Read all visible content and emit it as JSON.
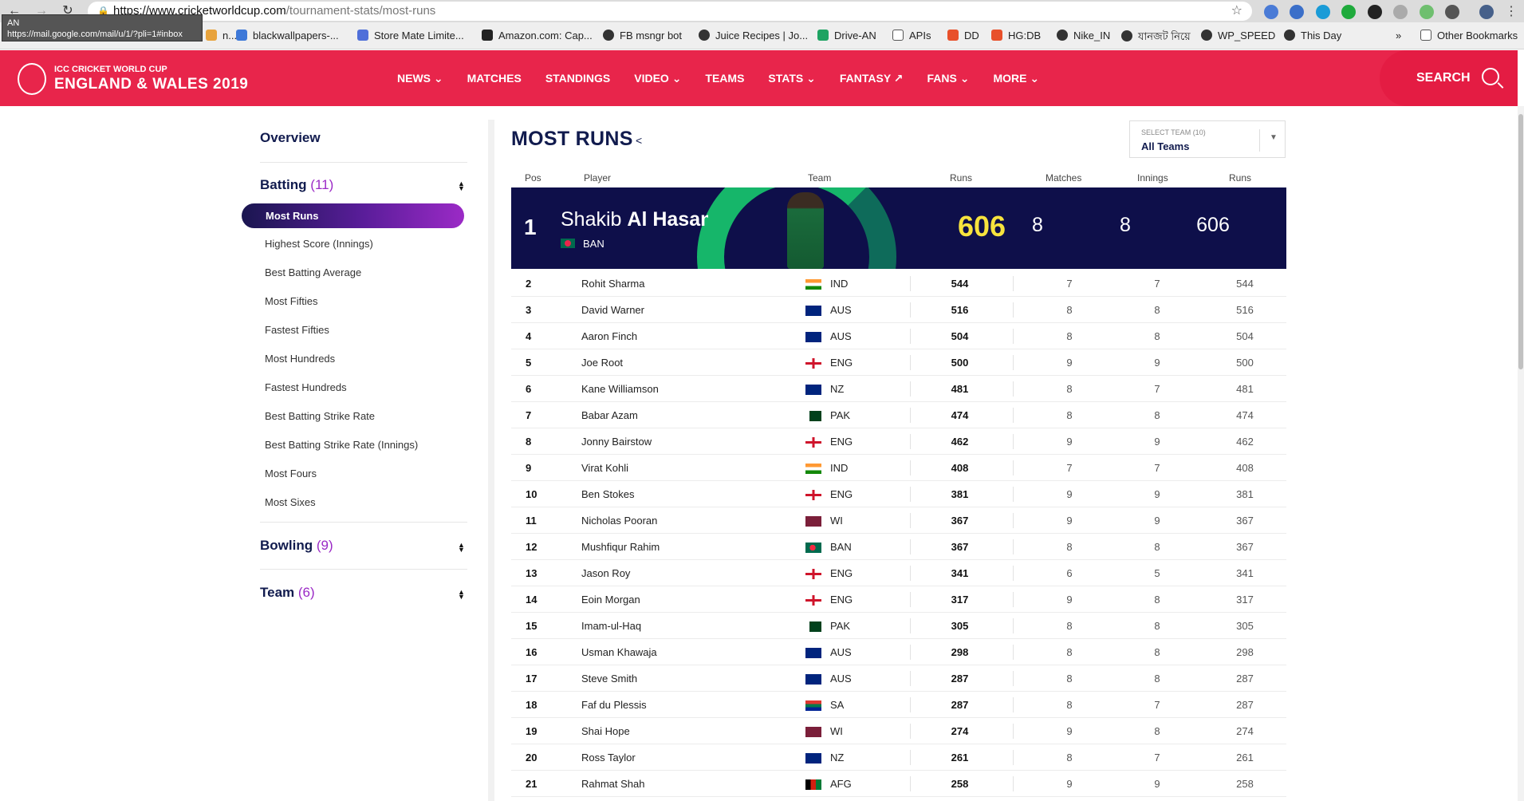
{
  "browser": {
    "url_host": "https://www.cricketworldcup.com",
    "url_path": "/tournament-stats/most-runs",
    "tooltip_line1": "AN",
    "tooltip_line2": "https://mail.google.com/mail/u/1/?pli=1#inbox",
    "bookmarks": [
      "n...",
      "blackwallpapers-...",
      "Store Mate Limite...",
      "Amazon.com: Cap...",
      "FB msngr bot",
      "Juice Recipes | Jo...",
      "Drive-AN",
      "APIs",
      "DD",
      "HG:DB",
      "Nike_IN",
      "যানজট নিয়ে",
      "WP_SPEED",
      "This Day"
    ],
    "more": "»",
    "other_bookmarks": "Other Bookmarks"
  },
  "header": {
    "logo_line1": "ICC CRICKET WORLD CUP",
    "logo_line2": "ENGLAND & WALES 2019",
    "nav": [
      "NEWS ⌄",
      "MATCHES",
      "STANDINGS",
      "VIDEO ⌄",
      "TEAMS",
      "STATS ⌄",
      "FANTASY ↗",
      "FANS ⌄",
      "MORE ⌄"
    ],
    "search_label": "SEARCH"
  },
  "sidebar": {
    "overview": "Overview",
    "batting_label": "Batting",
    "batting_count": "(11)",
    "batting_items": [
      "Most Runs",
      "Highest Score (Innings)",
      "Best Batting Average",
      "Most Fifties",
      "Fastest Fifties",
      "Most Hundreds",
      "Fastest Hundreds",
      "Best Batting Strike Rate",
      "Best Batting Strike Rate (Innings)",
      "Most Fours",
      "Most Sixes"
    ],
    "bowling_label": "Bowling",
    "bowling_count": "(9)",
    "team_label": "Team",
    "team_count": "(6)"
  },
  "main": {
    "title": "MOST RUNS",
    "select_label": "SELECT TEAM (10)",
    "select_value": "All Teams",
    "columns": [
      "Pos",
      "Player",
      "Team",
      "Runs",
      "Matches",
      "Innings",
      "Runs"
    ],
    "leader": {
      "pos": "1",
      "first": "Shakib ",
      "last": "Al Hasan",
      "team": "BAN",
      "runs": "606",
      "matches": "8",
      "innings": "8",
      "runs2": "606"
    },
    "rows": [
      {
        "pos": "2",
        "player": "Rohit Sharma",
        "team": "IND",
        "runs": "544",
        "m": "7",
        "i": "7",
        "r": "544",
        "flag": "ind"
      },
      {
        "pos": "3",
        "player": "David Warner",
        "team": "AUS",
        "runs": "516",
        "m": "8",
        "i": "8",
        "r": "516",
        "flag": "aus"
      },
      {
        "pos": "4",
        "player": "Aaron Finch",
        "team": "AUS",
        "runs": "504",
        "m": "8",
        "i": "8",
        "r": "504",
        "flag": "aus"
      },
      {
        "pos": "5",
        "player": "Joe Root",
        "team": "ENG",
        "runs": "500",
        "m": "9",
        "i": "9",
        "r": "500",
        "flag": "eng"
      },
      {
        "pos": "6",
        "player": "Kane Williamson",
        "team": "NZ",
        "runs": "481",
        "m": "8",
        "i": "7",
        "r": "481",
        "flag": "nz"
      },
      {
        "pos": "7",
        "player": "Babar Azam",
        "team": "PAK",
        "runs": "474",
        "m": "8",
        "i": "8",
        "r": "474",
        "flag": "pak"
      },
      {
        "pos": "8",
        "player": "Jonny Bairstow",
        "team": "ENG",
        "runs": "462",
        "m": "9",
        "i": "9",
        "r": "462",
        "flag": "eng"
      },
      {
        "pos": "9",
        "player": "Virat Kohli",
        "team": "IND",
        "runs": "408",
        "m": "7",
        "i": "7",
        "r": "408",
        "flag": "ind"
      },
      {
        "pos": "10",
        "player": "Ben Stokes",
        "team": "ENG",
        "runs": "381",
        "m": "9",
        "i": "9",
        "r": "381",
        "flag": "eng"
      },
      {
        "pos": "11",
        "player": "Nicholas Pooran",
        "team": "WI",
        "runs": "367",
        "m": "9",
        "i": "9",
        "r": "367",
        "flag": "wi"
      },
      {
        "pos": "12",
        "player": "Mushfiqur Rahim",
        "team": "BAN",
        "runs": "367",
        "m": "8",
        "i": "8",
        "r": "367",
        "flag": "ban"
      },
      {
        "pos": "13",
        "player": "Jason Roy",
        "team": "ENG",
        "runs": "341",
        "m": "6",
        "i": "5",
        "r": "341",
        "flag": "eng"
      },
      {
        "pos": "14",
        "player": "Eoin Morgan",
        "team": "ENG",
        "runs": "317",
        "m": "9",
        "i": "8",
        "r": "317",
        "flag": "eng"
      },
      {
        "pos": "15",
        "player": "Imam-ul-Haq",
        "team": "PAK",
        "runs": "305",
        "m": "8",
        "i": "8",
        "r": "305",
        "flag": "pak"
      },
      {
        "pos": "16",
        "player": "Usman Khawaja",
        "team": "AUS",
        "runs": "298",
        "m": "8",
        "i": "8",
        "r": "298",
        "flag": "aus"
      },
      {
        "pos": "17",
        "player": "Steve Smith",
        "team": "AUS",
        "runs": "287",
        "m": "8",
        "i": "8",
        "r": "287",
        "flag": "aus"
      },
      {
        "pos": "18",
        "player": "Faf du Plessis",
        "team": "SA",
        "runs": "287",
        "m": "8",
        "i": "7",
        "r": "287",
        "flag": "sa"
      },
      {
        "pos": "19",
        "player": "Shai Hope",
        "team": "WI",
        "runs": "274",
        "m": "9",
        "i": "8",
        "r": "274",
        "flag": "wi"
      },
      {
        "pos": "20",
        "player": "Ross Taylor",
        "team": "NZ",
        "runs": "261",
        "m": "8",
        "i": "7",
        "r": "261",
        "flag": "nz"
      },
      {
        "pos": "21",
        "player": "Rahmat Shah",
        "team": "AFG",
        "runs": "258",
        "m": "9",
        "i": "9",
        "r": "258",
        "flag": "afg"
      }
    ]
  },
  "colors": {
    "header": "#e8254b",
    "navy": "#111b4e",
    "accent": "#9b2ac6",
    "hero_runs": "#f7e33d"
  }
}
